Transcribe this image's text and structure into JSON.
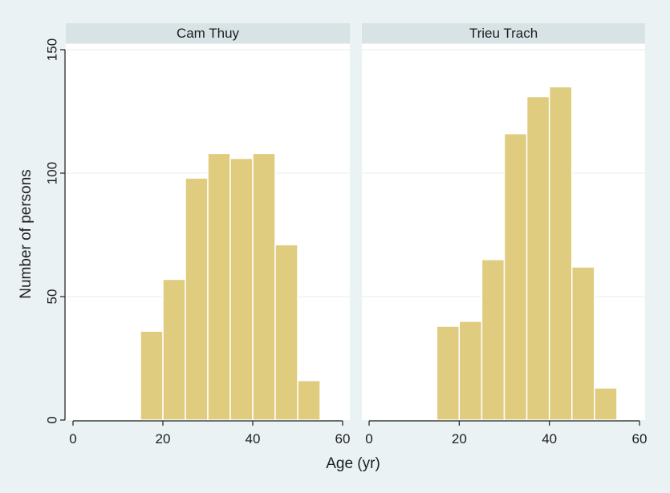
{
  "chart_data": {
    "type": "bar",
    "subtype": "histogram",
    "xlabel": "Age (yr)",
    "ylabel": "Number of persons",
    "xlim": [
      0,
      60
    ],
    "ylim": [
      0,
      150
    ],
    "x_ticks": [
      0,
      20,
      40,
      60
    ],
    "y_ticks": [
      0,
      50,
      100,
      150
    ],
    "grid": "horizontal",
    "bar_color": "#dfcc7f",
    "bin_width": 5,
    "panels": [
      {
        "title": "Cam Thuy",
        "bins": [
          {
            "x0": 15,
            "x1": 20,
            "value": 36
          },
          {
            "x0": 20,
            "x1": 25,
            "value": 57
          },
          {
            "x0": 25,
            "x1": 30,
            "value": 98
          },
          {
            "x0": 30,
            "x1": 35,
            "value": 108
          },
          {
            "x0": 35,
            "x1": 40,
            "value": 106
          },
          {
            "x0": 40,
            "x1": 45,
            "value": 108
          },
          {
            "x0": 45,
            "x1": 50,
            "value": 71
          },
          {
            "x0": 50,
            "x1": 55,
            "value": 16
          }
        ]
      },
      {
        "title": "Trieu Trach",
        "bins": [
          {
            "x0": 15,
            "x1": 20,
            "value": 38
          },
          {
            "x0": 20,
            "x1": 25,
            "value": 40
          },
          {
            "x0": 25,
            "x1": 30,
            "value": 65
          },
          {
            "x0": 30,
            "x1": 35,
            "value": 116
          },
          {
            "x0": 35,
            "x1": 40,
            "value": 131
          },
          {
            "x0": 40,
            "x1": 45,
            "value": 135
          },
          {
            "x0": 45,
            "x1": 50,
            "value": 62
          },
          {
            "x0": 50,
            "x1": 55,
            "value": 13
          }
        ]
      }
    ]
  }
}
